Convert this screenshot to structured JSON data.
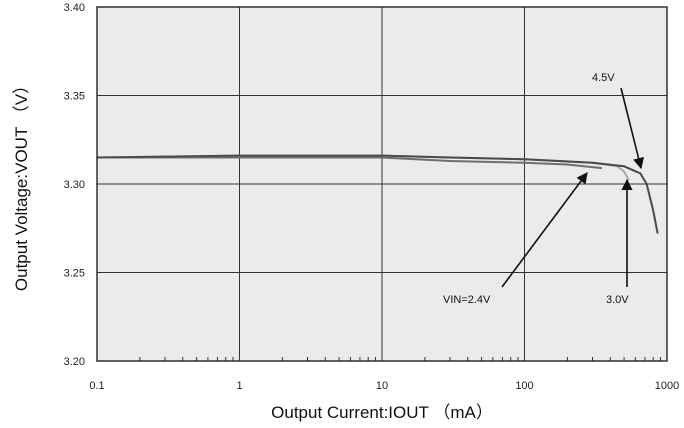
{
  "chart_data": {
    "type": "line",
    "xscale": "log",
    "xlim": [
      0.1,
      1000
    ],
    "ylim": [
      3.2,
      3.4
    ],
    "xticks": [
      0.1,
      1,
      10,
      100,
      1000
    ],
    "xtick_labels": [
      "0.1",
      "1",
      "10",
      "100",
      "1000"
    ],
    "yticks": [
      3.2,
      3.25,
      3.3,
      3.35,
      3.4
    ],
    "ytick_labels": [
      "3.20",
      "3.25",
      "3.30",
      "3.35",
      "3.40"
    ],
    "xlabel": "Output Current:IOUT （mA）",
    "ylabel": "Output Voltage:VOUT （V）",
    "grid": true,
    "series": [
      {
        "name": "VIN=2.4V",
        "color": "#6e6e6e",
        "points": [
          [
            0.1,
            3.315
          ],
          [
            1,
            3.315
          ],
          [
            10,
            3.315
          ],
          [
            30,
            3.313
          ],
          [
            100,
            3.312
          ],
          [
            200,
            3.311
          ],
          [
            350,
            3.309
          ]
        ]
      },
      {
        "name": "3.0V",
        "color": "#a9a9a9",
        "points": [
          [
            0.1,
            3.315
          ],
          [
            1,
            3.316
          ],
          [
            10,
            3.316
          ],
          [
            30,
            3.315
          ],
          [
            100,
            3.314
          ],
          [
            300,
            3.312
          ],
          [
            450,
            3.31
          ],
          [
            500,
            3.307
          ],
          [
            540,
            3.302
          ]
        ]
      },
      {
        "name": "4.5V",
        "color": "#4a4a4a",
        "points": [
          [
            0.1,
            3.315
          ],
          [
            1,
            3.316
          ],
          [
            10,
            3.316
          ],
          [
            30,
            3.315
          ],
          [
            100,
            3.314
          ],
          [
            300,
            3.312
          ],
          [
            500,
            3.31
          ],
          [
            650,
            3.306
          ],
          [
            720,
            3.3
          ],
          [
            800,
            3.285
          ],
          [
            860,
            3.272
          ]
        ]
      }
    ],
    "annotations": [
      {
        "label": "4.5V",
        "target": [
          650,
          3.3085
        ]
      },
      {
        "label": "VIN=2.4V",
        "target": [
          260,
          3.3075
        ]
      },
      {
        "label": "3.0V",
        "target": [
          520,
          3.303
        ]
      }
    ]
  }
}
